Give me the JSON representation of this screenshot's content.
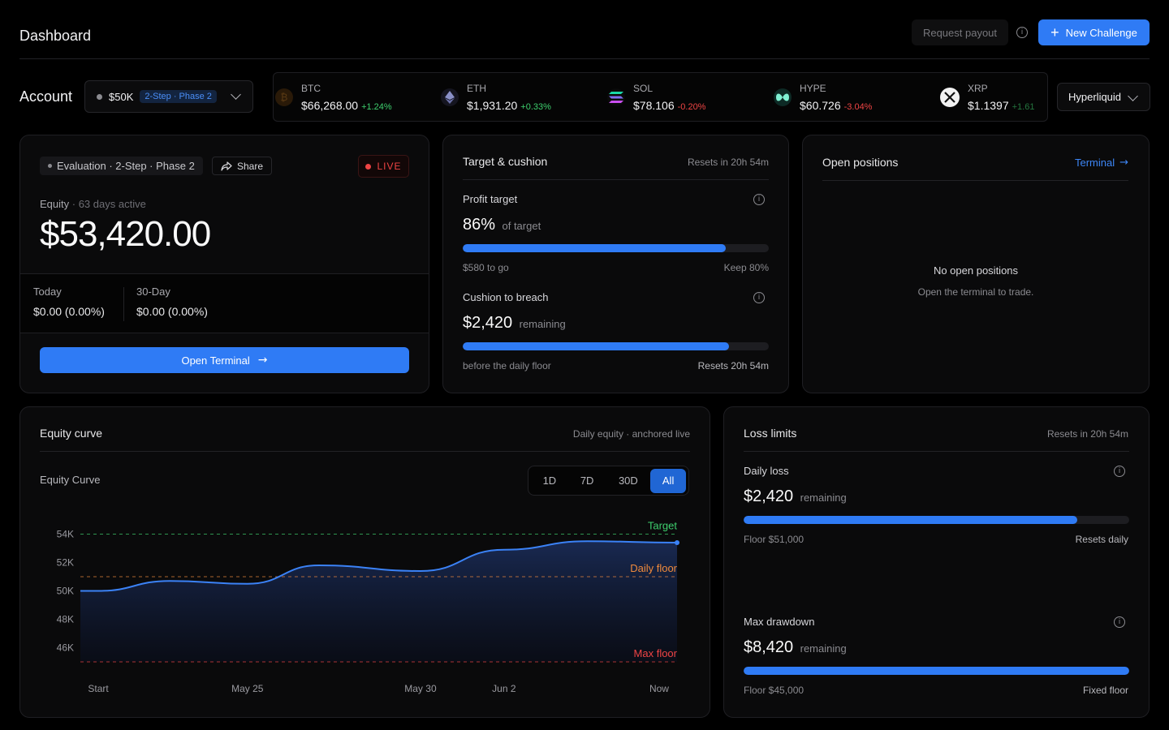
{
  "header": {
    "title": "Dashboard",
    "request_payout": "Request payout",
    "info_icon": "i",
    "new_challenge": "New Challenge",
    "plus_icon": "+"
  },
  "account": {
    "label": "Account",
    "size": "$50K",
    "phase": "2-Step · Phase 2",
    "exchange": "Hyperliquid"
  },
  "tickers": [
    {
      "symbol": "BTC",
      "price": "$66,268.00",
      "change": "+1.24%",
      "dir": "up"
    },
    {
      "symbol": "ETH",
      "price": "$1,931.20",
      "change": "+0.33%",
      "dir": "up"
    },
    {
      "symbol": "SOL",
      "price": "$78.106",
      "change": "-0.20%",
      "dir": "down"
    },
    {
      "symbol": "HYPE",
      "price": "$60.726",
      "change": "-3.04%",
      "dir": "down"
    },
    {
      "symbol": "XRP",
      "price": "$1.1397",
      "change": "+1.61",
      "dir": "up"
    }
  ],
  "evaluation": {
    "badge": "Evaluation · 2-Step · Phase 2",
    "share": "Share",
    "live": "LIVE",
    "equity_label": "Equity",
    "days_active": "· 63 days active",
    "equity": "$53,420.00",
    "today_label": "Today",
    "today_value": "$0.00 (0.00%)",
    "thirty_label": "30-Day",
    "thirty_value": "$0.00 (0.00%)",
    "open_terminal": "Open Terminal",
    "arrow": "→"
  },
  "target_cushion": {
    "title": "Target & cushion",
    "resets": "Resets in 20h 54m",
    "profit_label": "Profit target",
    "profit_value": "86%",
    "profit_suffix": "of target",
    "profit_progress": 0.86,
    "profit_left": "$580 to go",
    "profit_right": "Keep 80%",
    "cushion_label": "Cushion to breach",
    "cushion_value": "$2,420",
    "cushion_suffix": "remaining",
    "cushion_progress": 0.87,
    "cushion_left": "before the daily floor",
    "cushion_right": "Resets 20h 54m"
  },
  "positions": {
    "title": "Open positions",
    "terminal_link": "Terminal",
    "empty_title": "No open positions",
    "empty_sub": "Open the terminal to trade."
  },
  "equity_curve": {
    "title": "Equity curve",
    "meta": "Daily equity · anchored live",
    "chart_title": "Equity Curve",
    "timeframes": [
      "1D",
      "7D",
      "30D",
      "All"
    ],
    "active_timeframe": "All"
  },
  "chart_data": {
    "type": "area",
    "title": "Equity Curve",
    "yticks": [
      "54K",
      "52K",
      "50K",
      "48K",
      "46K"
    ],
    "ytick_values": [
      54000,
      52000,
      50000,
      48000,
      46000
    ],
    "xticks": [
      "Start",
      "May 25",
      "May 30",
      "Jun 2",
      "Now"
    ],
    "xtick_positions": [
      0.03,
      0.28,
      0.57,
      0.71,
      0.97
    ],
    "ylim": [
      45000,
      55000
    ],
    "series": [
      {
        "x": [
          0,
          0.03,
          0.15,
          0.28,
          0.4,
          0.57,
          0.71,
          0.85,
          1.0
        ],
        "y": [
          50000,
          50000,
          50700,
          50500,
          51800,
          51400,
          52900,
          53500,
          53400
        ]
      }
    ],
    "lines": [
      {
        "label": "Target",
        "value": 54000,
        "color": "#3ecf6e"
      },
      {
        "label": "Daily floor",
        "value": 51000,
        "color": "#f08a3c"
      },
      {
        "label": "Max floor",
        "value": 45000,
        "color": "#ef4444"
      }
    ]
  },
  "loss_limits": {
    "title": "Loss limits",
    "resets": "Resets in 20h 54m",
    "daily_label": "Daily loss",
    "daily_value": "$2,420",
    "daily_suffix": "remaining",
    "daily_progress": 0.865,
    "daily_left": "Floor $51,000",
    "daily_right": "Resets daily",
    "dd_label": "Max drawdown",
    "dd_value": "$8,420",
    "dd_suffix": "remaining",
    "dd_progress": 1.0,
    "dd_left": "Floor $45,000",
    "dd_right": "Fixed floor"
  },
  "colors": {
    "accent": "#2f7bf5",
    "up": "#3ecf6e",
    "down": "#ef4444"
  }
}
